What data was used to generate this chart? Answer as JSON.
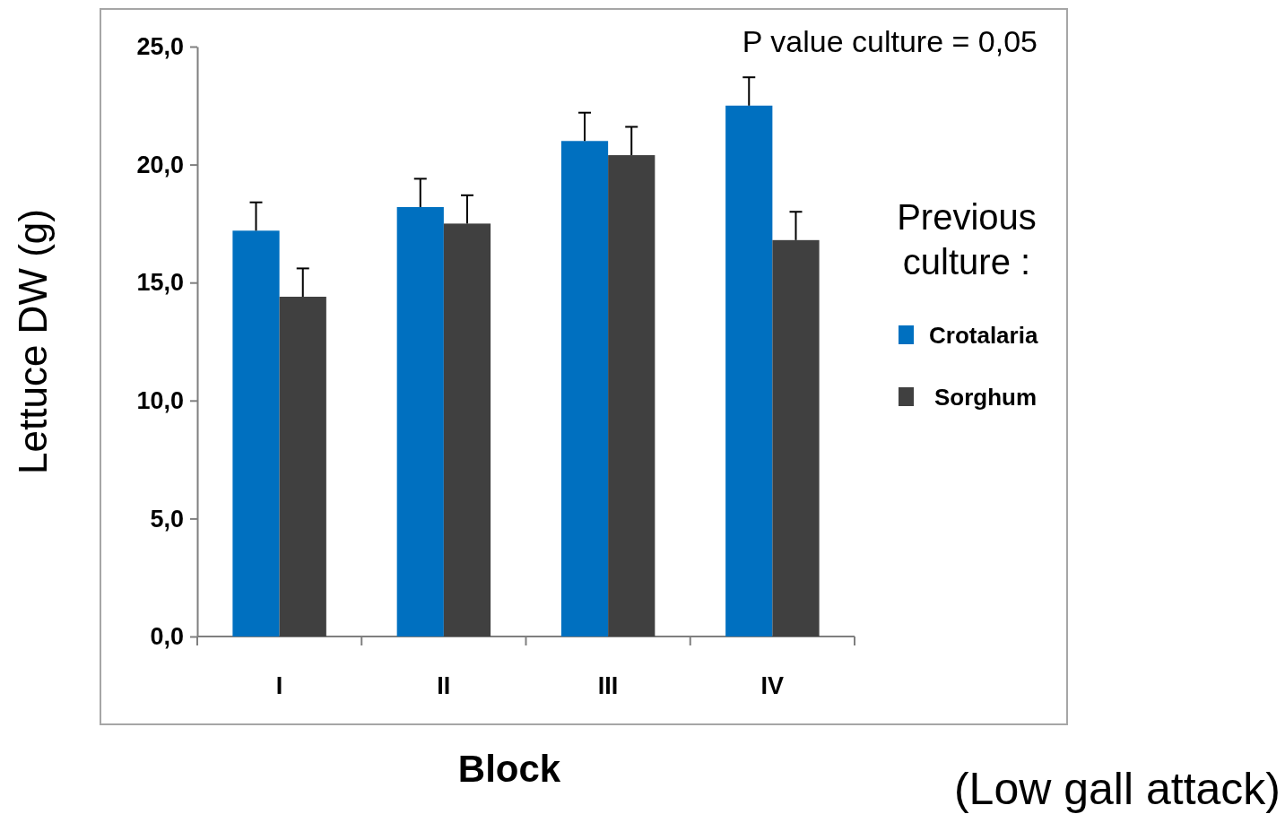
{
  "chart_data": {
    "type": "bar",
    "xlabel": "Block",
    "ylabel": "Lettuce DW (g)",
    "legend_title": "Previous culture :",
    "categories": [
      "I",
      "II",
      "III",
      "IV"
    ],
    "series": [
      {
        "name": "Crotalaria",
        "color": "#0070c0",
        "values": [
          17.2,
          18.2,
          21.0,
          22.5
        ],
        "errors": [
          [
            17.2,
            18.4
          ],
          [
            18.2,
            19.4
          ],
          [
            21.0,
            22.2
          ],
          [
            22.5,
            23.7
          ]
        ]
      },
      {
        "name": "Sorghum",
        "color": "#404040",
        "values": [
          14.4,
          17.5,
          20.4,
          16.8
        ],
        "errors": [
          [
            14.4,
            15.6
          ],
          [
            17.5,
            18.7
          ],
          [
            20.4,
            21.6
          ],
          [
            16.8,
            18.0
          ]
        ]
      }
    ],
    "ylim": [
      0,
      25
    ],
    "yticks": [
      {
        "value": 0,
        "label": "0,0"
      },
      {
        "value": 5,
        "label": "5,0"
      },
      {
        "value": 10,
        "label": "10,0"
      },
      {
        "value": 15,
        "label": "15,0"
      },
      {
        "value": 20,
        "label": "20,0"
      },
      {
        "value": 25,
        "label": "25,0"
      }
    ],
    "grid": false,
    "legend": "right",
    "annotations": [
      "P value culture = 0,05",
      "(Low gall attack)"
    ]
  }
}
